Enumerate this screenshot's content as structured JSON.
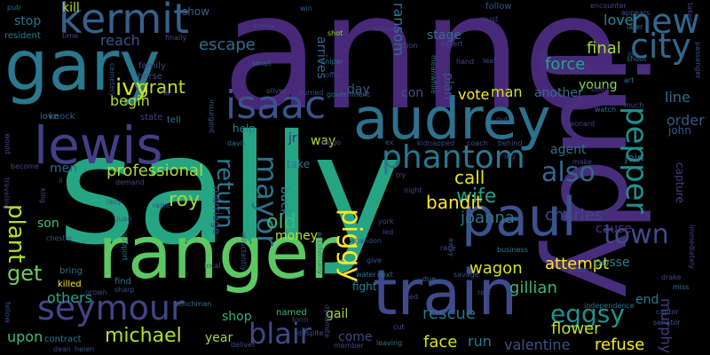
{
  "words": [
    {
      "text": "anne",
      "color": "#482878"
    },
    {
      "text": "sally",
      "color": "#26a584"
    },
    {
      "text": "judy",
      "color": "#472d7b"
    },
    {
      "text": "ranger",
      "color": "#5cc863"
    },
    {
      "text": "gary",
      "color": "#2a788e"
    },
    {
      "text": "train",
      "color": "#3e4a89"
    },
    {
      "text": "audrey",
      "color": "#2c718e"
    },
    {
      "text": "paul",
      "color": "#3b528b"
    },
    {
      "text": "lewis",
      "color": "#433e85"
    },
    {
      "text": "kermit",
      "color": "#34618d"
    },
    {
      "text": "isaac",
      "color": "#3b528b"
    },
    {
      "text": "new",
      "color": "#31688e"
    },
    {
      "text": "city",
      "color": "#31688e"
    },
    {
      "text": "seymour",
      "color": "#414487"
    },
    {
      "text": "phantom",
      "color": "#2a788e"
    },
    {
      "text": "pepper",
      "color": "#21908d"
    },
    {
      "text": "mayor",
      "color": "#2c728e"
    },
    {
      "text": "blair",
      "color": "#3e4989"
    },
    {
      "text": "piggy",
      "color": "#fde725"
    },
    {
      "text": "return",
      "color": "#297a8e"
    },
    {
      "text": "also",
      "color": "#31688e"
    },
    {
      "text": "town",
      "color": "#3e4a89"
    },
    {
      "text": "eggsy",
      "color": "#21918c"
    },
    {
      "text": "plant",
      "color": "#b5de2b"
    },
    {
      "text": "ivy",
      "color": "#d2e21b"
    },
    {
      "text": "roy",
      "color": "#a0da39"
    },
    {
      "text": "get",
      "color": "#6ece58"
    },
    {
      "text": "michael",
      "color": "#b8de29"
    },
    {
      "text": "attempt",
      "color": "#fde725"
    },
    {
      "text": "gillian",
      "color": "#35b779"
    },
    {
      "text": "wife",
      "color": "#1f9e89"
    },
    {
      "text": "old",
      "color": "#3aba76"
    },
    {
      "text": "professional",
      "color": "#addc30"
    },
    {
      "text": "grant",
      "color": "#c2df23"
    },
    {
      "text": "bandit",
      "color": "#fde725"
    },
    {
      "text": "call",
      "color": "#e5e419"
    },
    {
      "text": "joanna",
      "color": "#2b758e"
    },
    {
      "text": "charles",
      "color": "#3f4788"
    },
    {
      "text": "agent",
      "color": "#2c718e"
    },
    {
      "text": "face",
      "color": "#d8e219"
    },
    {
      "text": "run",
      "color": "#2a788e"
    },
    {
      "text": "valentine",
      "color": "#3b528b"
    },
    {
      "text": "refuse",
      "color": "#fde725"
    },
    {
      "text": "murphy",
      "color": "#433d84"
    },
    {
      "text": "rescue",
      "color": "#2d708e"
    },
    {
      "text": "flower",
      "color": "#bddf26"
    },
    {
      "text": "wagon",
      "color": "#d5e21a"
    },
    {
      "text": "escape",
      "color": "#2e6f8e"
    },
    {
      "text": "reach",
      "color": "#3a548c"
    },
    {
      "text": "begin",
      "color": "#addc30"
    },
    {
      "text": "young",
      "color": "#8bd646"
    },
    {
      "text": "another",
      "color": "#2d718e"
    },
    {
      "text": "force",
      "color": "#22a785"
    },
    {
      "text": "final",
      "color": "#9dd93b"
    },
    {
      "text": "lover",
      "color": "#238a8d"
    },
    {
      "text": "order",
      "color": "#38588c"
    },
    {
      "text": "line",
      "color": "#2f6b8e"
    },
    {
      "text": "man",
      "color": "#d0e11c"
    },
    {
      "text": "vote",
      "color": "#fde725"
    },
    {
      "text": "shop",
      "color": "#2db27d"
    },
    {
      "text": "gail",
      "color": "#a2da37"
    },
    {
      "text": "year",
      "color": "#9dd93b"
    },
    {
      "text": "upon",
      "color": "#3dbc74"
    },
    {
      "text": "others",
      "color": "#22a785"
    },
    {
      "text": "son",
      "color": "#42be71"
    },
    {
      "text": "money",
      "color": "#b8de29"
    },
    {
      "text": "men",
      "color": "#34618d"
    },
    {
      "text": "help",
      "color": "#26828e"
    },
    {
      "text": "way",
      "color": "#b5de2b"
    },
    {
      "text": "back",
      "color": "#21918c"
    },
    {
      "text": "posse",
      "color": "#277f8e"
    },
    {
      "text": "cause",
      "color": "#46327e"
    },
    {
      "text": "end",
      "color": "#2a788e"
    },
    {
      "text": "come",
      "color": "#3e4a89"
    },
    {
      "text": "fight",
      "color": "#25848e"
    },
    {
      "text": "stop",
      "color": "#2d708e"
    },
    {
      "text": "kill",
      "color": "#addc30"
    },
    {
      "text": "show",
      "color": "#34618d"
    },
    {
      "text": "ransom",
      "color": "#2c728e"
    },
    {
      "text": "plan",
      "color": "#3b528b"
    },
    {
      "text": "arrives",
      "color": "#31688e"
    },
    {
      "text": "day",
      "color": "#39568c"
    },
    {
      "text": "stage",
      "color": "#2d708e"
    },
    {
      "text": "con",
      "color": "#39558c"
    },
    {
      "text": "jr",
      "color": "#482173"
    },
    {
      "text": "john",
      "color": "#39558c"
    },
    {
      "text": "join",
      "color": "#2c728e"
    },
    {
      "text": "take",
      "color": "#2a788e"
    },
    {
      "text": "marriage",
      "color": "#3f4788"
    },
    {
      "text": "capture",
      "color": "#433e85"
    },
    {
      "text": "resident",
      "color": "#287c8e"
    },
    {
      "text": "family",
      "color": "#433e85"
    },
    {
      "text": "horse",
      "color": "#3b528b"
    },
    {
      "text": "state",
      "color": "#433e85"
    },
    {
      "text": "tell",
      "color": "#2a788e"
    },
    {
      "text": "knock",
      "color": "#38588c"
    },
    {
      "text": "love",
      "color": "#2c728e"
    },
    {
      "text": "killed",
      "color": "#fde725"
    },
    {
      "text": "bring",
      "color": "#2d708e"
    },
    {
      "text": "find",
      "color": "#2e6f8e"
    },
    {
      "text": "named",
      "color": "#3fbc73"
    },
    {
      "text": "contract",
      "color": "#2a788e"
    },
    {
      "text": "time",
      "color": "#404688"
    },
    {
      "text": "pub",
      "color": "#2d708e"
    },
    {
      "text": "win",
      "color": "#38588c"
    },
    {
      "text": "shot",
      "color": "#9dd93b"
    },
    {
      "text": "follow",
      "color": "#39558c"
    },
    {
      "text": "must",
      "color": "#3e4a89"
    },
    {
      "text": "encounter",
      "color": "#3e4a89"
    },
    {
      "text": "later",
      "color": "#2a788e"
    },
    {
      "text": "taken",
      "color": "#404688"
    },
    {
      "text": "job",
      "color": "#38588c"
    },
    {
      "text": "art",
      "color": "#2c728e"
    },
    {
      "text": "shoot",
      "color": "#2d708e"
    },
    {
      "text": "passenger",
      "color": "#3b528b"
    },
    {
      "text": "leaf",
      "color": "#404688"
    },
    {
      "text": "hand",
      "color": "#3e4a89"
    },
    {
      "text": "action",
      "color": "#3e4a89"
    },
    {
      "text": "william",
      "color": "#404688"
    },
    {
      "text": "desert",
      "color": "#3e4989"
    },
    {
      "text": "meanwhile",
      "color": "#2c728e"
    },
    {
      "text": "appears",
      "color": "#3b528b"
    },
    {
      "text": "camp",
      "color": "#3e4989"
    },
    {
      "text": "small",
      "color": "#2d708e"
    },
    {
      "text": "sniper",
      "color": "#2c728e"
    },
    {
      "text": "offer",
      "color": "#433e85"
    },
    {
      "text": "government",
      "color": "#2d708e"
    },
    {
      "text": "burned",
      "color": "#3e4a89"
    },
    {
      "text": "oliver",
      "color": "#3b528b"
    },
    {
      "text": "finally",
      "color": "#3e4a89"
    },
    {
      "text": "cemetery",
      "color": "#3e4a89"
    },
    {
      "text": "la",
      "color": "#404688"
    },
    {
      "text": "insurgent",
      "color": "#38588c"
    },
    {
      "text": "davis",
      "color": "#2d708e"
    },
    {
      "text": "diego",
      "color": "#404688"
    },
    {
      "text": "ex",
      "color": "#3e4a89"
    },
    {
      "text": "kidnapped",
      "color": "#404688"
    },
    {
      "text": "coach",
      "color": "#3b528b"
    },
    {
      "text": "behind",
      "color": "#3e4989"
    },
    {
      "text": "leg",
      "color": "#404688"
    },
    {
      "text": "put",
      "color": "#3e4989"
    },
    {
      "text": "watch",
      "color": "#2c728e"
    },
    {
      "text": "much",
      "color": "#3e4a89"
    },
    {
      "text": "body",
      "color": "#404688"
    },
    {
      "text": "leonard",
      "color": "#433e85"
    },
    {
      "text": "make",
      "color": "#404688"
    },
    {
      "text": "would",
      "color": "#3e4a89"
    },
    {
      "text": "become",
      "color": "#404688"
    },
    {
      "text": "traveling",
      "color": "#433e85"
    },
    {
      "text": "ii",
      "color": "#433e85"
    },
    {
      "text": "king",
      "color": "#3e4a89"
    },
    {
      "text": "demand",
      "color": "#3e4a89"
    },
    {
      "text": "lady",
      "color": "#3b528b"
    },
    {
      "text": "raise",
      "color": "#404688"
    },
    {
      "text": "juan",
      "color": "#3b528b"
    },
    {
      "text": "chester",
      "color": "#3b528b"
    },
    {
      "text": "support",
      "color": "#2a788e"
    },
    {
      "text": "reluctantly",
      "color": "#3b528b"
    },
    {
      "text": "accidentally",
      "color": "#2c728e"
    },
    {
      "text": "try",
      "color": "#404688"
    },
    {
      "text": "night",
      "color": "#404688"
    },
    {
      "text": "york",
      "color": "#3e4989"
    },
    {
      "text": "led",
      "color": "#404688"
    },
    {
      "text": "abandon",
      "color": "#3e4a89"
    },
    {
      "text": "give",
      "color": "#3b528b"
    },
    {
      "text": "next",
      "color": "#2c728e"
    },
    {
      "text": "race",
      "color": "#3e4989"
    },
    {
      "text": "away",
      "color": "#3e4a89"
    },
    {
      "text": "business",
      "color": "#2a788e"
    },
    {
      "text": "citizen",
      "color": "#3b528b"
    },
    {
      "text": "drake",
      "color": "#404688"
    },
    {
      "text": "miss",
      "color": "#2a788e"
    },
    {
      "text": "immediately",
      "color": "#404688"
    },
    {
      "text": "local",
      "color": "#3b528b"
    },
    {
      "text": "grown",
      "color": "#404688"
    },
    {
      "text": "sharp",
      "color": "#3e4a89"
    },
    {
      "text": "form",
      "color": "#433e85"
    },
    {
      "text": "water",
      "color": "#2c728e"
    },
    {
      "text": "due",
      "color": "#2d708e"
    },
    {
      "text": "savage",
      "color": "#3b528b"
    },
    {
      "text": "rest",
      "color": "#404688"
    },
    {
      "text": "independence",
      "color": "#2c728e"
    },
    {
      "text": "captor",
      "color": "#3e4989"
    },
    {
      "text": "senator",
      "color": "#3b528b"
    },
    {
      "text": "fellow",
      "color": "#3e4a89"
    },
    {
      "text": "henchman",
      "color": "#2c728e"
    },
    {
      "text": "dynamite",
      "color": "#3e4a89"
    },
    {
      "text": "ned",
      "color": "#404688"
    },
    {
      "text": "despite",
      "color": "#3b528b"
    },
    {
      "text": "cut",
      "color": "#3e4989"
    },
    {
      "text": "dean",
      "color": "#404688"
    },
    {
      "text": "helen",
      "color": "#3b528b"
    },
    {
      "text": "deliver",
      "color": "#3e4a89"
    },
    {
      "text": "member",
      "color": "#404688"
    },
    {
      "text": "leaving",
      "color": "#2c728e"
    }
  ]
}
